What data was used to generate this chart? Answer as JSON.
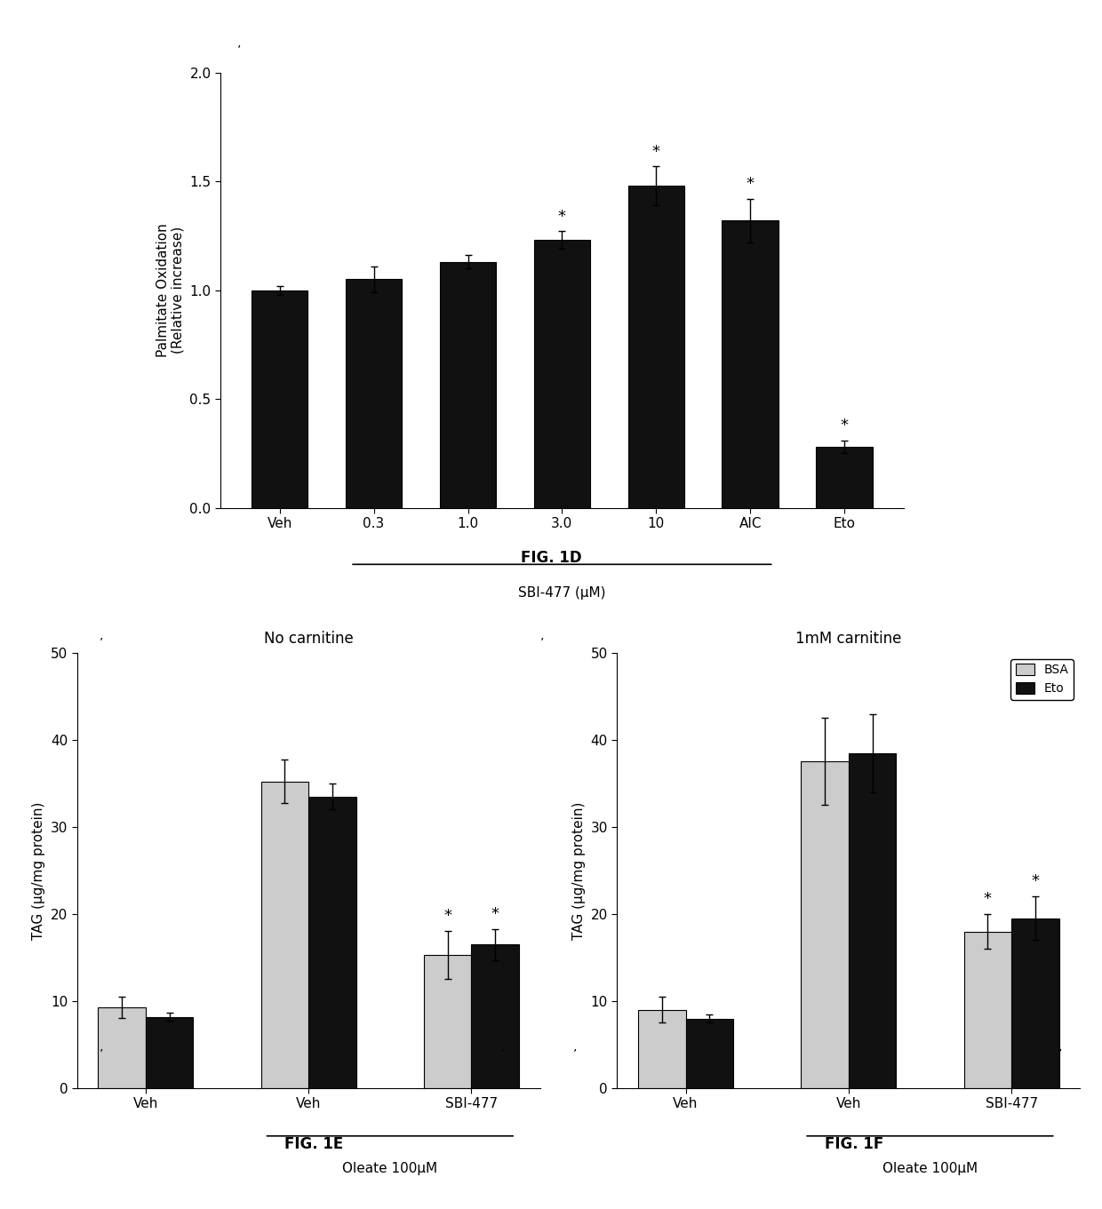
{
  "fig1d": {
    "categories": [
      "Veh",
      "0.3",
      "1.0",
      "3.0",
      "10",
      "AIC",
      "Eto"
    ],
    "values": [
      1.0,
      1.05,
      1.13,
      1.23,
      1.48,
      1.32,
      0.28
    ],
    "errors": [
      0.02,
      0.06,
      0.03,
      0.04,
      0.09,
      0.1,
      0.03
    ],
    "significant": [
      false,
      false,
      false,
      true,
      true,
      true,
      true
    ],
    "ylabel": "Palmitate Oxidation\n(Relative increase)",
    "xlabel_bracket": "SBI-477 (μM)",
    "xlabel_bracket_cats": [
      "0.3",
      "1.0",
      "3.0",
      "10",
      "AIC"
    ],
    "ylim": [
      0.0,
      2.0
    ],
    "yticks": [
      0.0,
      0.5,
      1.0,
      1.5,
      2.0
    ],
    "title": "FIG. 1D",
    "bar_color": "#111111",
    "bar_width": 0.6
  },
  "fig1e": {
    "groups": [
      "Veh",
      "Veh",
      "SBI-477"
    ],
    "group_labels": [
      "Veh",
      "Veh",
      "SBI-477"
    ],
    "bsa_values": [
      9.3,
      35.2,
      15.3
    ],
    "eto_values": [
      8.2,
      33.5,
      16.5
    ],
    "bsa_errors": [
      1.2,
      2.5,
      2.8
    ],
    "eto_errors": [
      0.5,
      1.5,
      1.8
    ],
    "significant_bsa": [
      false,
      false,
      true
    ],
    "significant_eto": [
      false,
      false,
      true
    ],
    "ylabel": "TAG (μg/mg protein)",
    "xlabel_bracket": "Oleate 100μM",
    "xlabel_bracket_cats": [
      "Veh",
      "SBI-477"
    ],
    "title_text": "No carnitine",
    "fig_label": "FIG. 1E",
    "ylim": [
      0,
      50
    ],
    "yticks": [
      0,
      10,
      20,
      30,
      40,
      50
    ],
    "bar_width": 0.35
  },
  "fig1f": {
    "groups": [
      "Veh",
      "Veh",
      "SBI-477"
    ],
    "bsa_values": [
      9.0,
      37.5,
      18.0
    ],
    "eto_values": [
      8.0,
      38.5,
      19.5
    ],
    "bsa_errors": [
      1.5,
      5.0,
      2.0
    ],
    "eto_errors": [
      0.5,
      4.5,
      2.5
    ],
    "significant_bsa": [
      false,
      false,
      true
    ],
    "significant_eto": [
      false,
      false,
      true
    ],
    "ylabel": "TAG (μg/mg protein)",
    "xlabel_bracket": "Oleate 100μM",
    "xlabel_bracket_cats": [
      "Veh",
      "SBI-477"
    ],
    "title_text": "1mM carnitine",
    "fig_label": "FIG. 1F",
    "ylim": [
      0,
      50
    ],
    "yticks": [
      0,
      10,
      20,
      30,
      40,
      50
    ],
    "bar_width": 0.35,
    "legend_labels": [
      "BSA",
      "Eto"
    ]
  },
  "background_color": "#ffffff",
  "bar_color_black": "#111111",
  "bar_color_white": "#e8e8e8",
  "bar_color_dotted": "#cccccc"
}
